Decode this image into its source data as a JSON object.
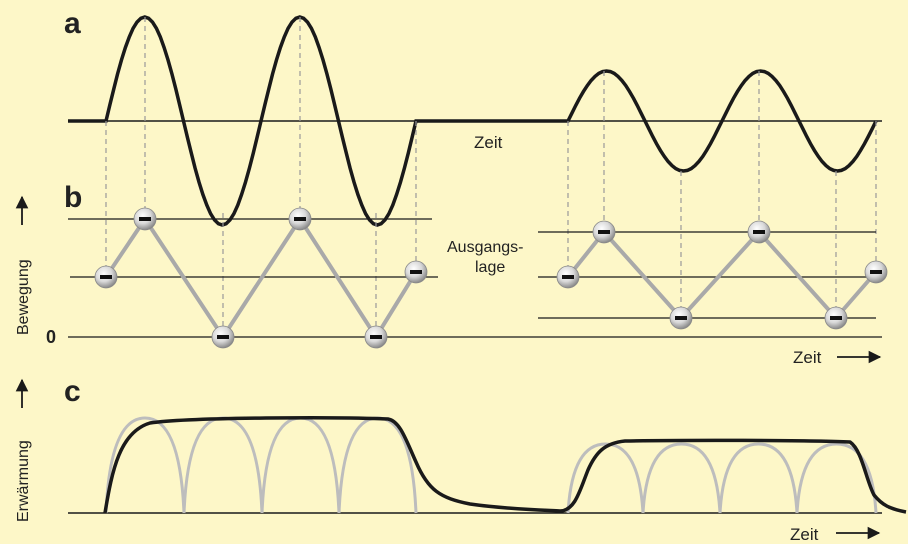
{
  "panels": {
    "a": "a",
    "b": "b",
    "c": "c"
  },
  "labels": {
    "zeit_a": "Zeit",
    "zeit_b": "Zeit",
    "zeit_c": "Zeit",
    "ausgangslage_line1": "Ausgangs-",
    "ausgangslage_line2": "lage",
    "bewegung": "Bewegung",
    "erwaermung": "Erwärmung",
    "zero": "0"
  },
  "electron_symbol": "–",
  "colors": {
    "background": "#fdf7c8",
    "curve": "#1a1a1a",
    "electron_link": "#a9a9a9",
    "heating_arcs": "#bdbdbd",
    "guide_dash": "#9a9a9a"
  }
}
